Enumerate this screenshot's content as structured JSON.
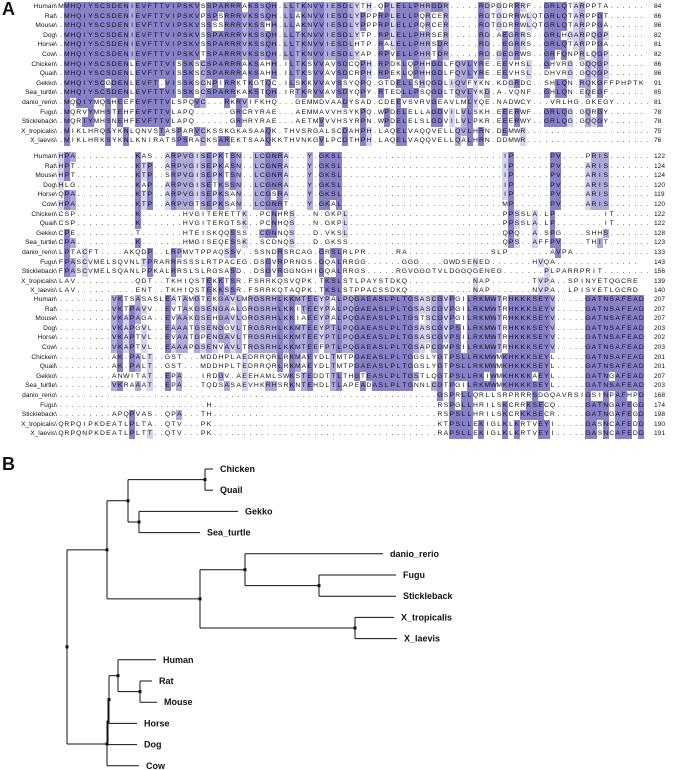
{
  "panels": {
    "a": "A",
    "b": "B"
  },
  "colors": {
    "high": "#8781c9",
    "mid": "#aeaadc",
    "low": "#d5d3ee",
    "line": "#111111"
  },
  "alignment": {
    "species": [
      "Human\\",
      "Rat\\",
      "Mouse\\",
      "Dog\\",
      "Horse\\",
      "Cow\\",
      "Chicken\\",
      "Quail\\",
      "Gekko\\",
      "Sea_turtle\\",
      "danio_rerio\\",
      "Fugu\\",
      "Stickleback\\",
      "X_tropicalis\\",
      "X_laevis\\"
    ],
    "blocks": [
      {
        "seqs": [
          "MMHQIYSCSDENIEVFTTVIPSKVSSPARRRAKSSQH.LLTKNVVIESDLYTH.QPLELLPHRGDR.....RDPGDRRRF..GRLQTARPPTA......",
          ".MHQIYSCSDENIEVFTTVIPSKVPSPSRRRVKSSQH.LLAKNVVIESDLYPPPRPLELLPQRCER.....RDTGDRRWLQTGRLQTARPPGT......",
          ".MHQIYSCSDENIEVFTTVIPSKVSSSSRRRVKSSHH.LLAKNVVIESDLYPPPRPLELLPQRCER.....RDTGDRRWLQTGRLQTARPPGA......",
          ".MHQIYSCSDENIEVFTTVIPSKVSSPARRRVKSSQH.LLTKNVVIESDLYTP.RPLELLPHRSER.....RD.AEGRRS..GRLHGARPQGP......",
          ".MHQIYSCSDENIEVFTTVIPSKVSSPARRRVKSSQH.LLTKNVVIESDLHTP.RALELLPHRSDR.....RD..EGRRS..GRLQTARPPGA......",
          ".MHQIYSCSDENIEVFTTVIPSKVTSPARRRVKSSQH.LLTKNVVIESDLYAP.RPVELLPHRTDR.....RD.GEGRWS..GRFQNPRLQGP......",
          ".MHQIYSCSDENLEVFTTVISSKSCSPARRRAKSAHH.ILTKSVVAVSDCQPH.RPDKLQPHHGDLFQVLYRE.EEVHSL..GHVRG.GQQGP......",
          ".MHQIYSCSDENLEVFTTVISSKSCSPARRRAKSAHH.ILTKSVVAVSDCRPH.RPEKLQPHHGDLFQVLYRE.EEVHSL..DHVRG.GQQGP......",
          ".MHQIYSCGDENLEVFT.VISSKSCNPIRRKTKGTQC.ILSKKVVAVSSYQPQ.GTDELLSHQGDLIQVFYKN.KDGRDC..SHLQN.RQKGFFPHPTK",
          ".MHQIYSCSDENLEVFTTVISSKSCSPARRKAKSTQH.IRTKRVVAVSDYQPY.RTEDLLPSQGDLTQVLYKD.A.VQNF..GHLQN.EQEGF......",
          ".MQQIYMQSHEEFEVFTTVLSPQVC...RKRVIFKHQ...GEMMDVAADYSAD.CDEEVSVRVGEAVLMLYQE.NADWCY...VRLHG.GKEGY......",
          ".MQRVYMHSTEHFEVFTTVLAPQ......GRCRYRAE...AEMMAVVHSYKPQ.WPDELELLAGDVILVLSKH.EEERWF..GRLQG.GQRGY......",
          ".MQRIYMHSNEHFEVFTTVLAPQ......GRHRYRAE...AETMVVVHSYRPN.WPDELELSLGDVILVLPKR.EEERWY..GRLQG.GQQGY......",
          ".MIKLHRQSYKNLQNVSTASPARVCKSSKGKASAAQK.THVSRGALSCDAHPH.LAQELVAQQVELLQVLHRN.DEMWR.....................",
          ".MIKLHRKSYKNLKNIRATSPSRACKSAREKTSAAQKKTHVNKGVLPCDTHPH.LAQELVAQQVELLQALHRN.DDMWR....................."
        ],
        "ends": [
          "84",
          "86",
          "86",
          "82",
          "81",
          "82",
          "86",
          "86",
          "91",
          "85",
          "81",
          "78",
          "78",
          "75",
          "76"
        ]
      },
      {
        "seqs": [
          "HPA..........KAS..ARPVGISEPKTSN..LCGNRA...Y.GKSL...........................IP......PV....PRIS.......",
          "HPT..........KTP..ARPVGISEPKASN..LCGNRA...Y.GKSL...........................IP......PV....ARIS.......",
          "HPT..........KTP..SRPVGISEPKTSN..LCGNRA...Y.GKSL...........................IP......PV....ARIS.......",
          "HLG..........KAP..ARPVGISETKSSN..LCGNRA...Y.GKSL...........................IP......PV....ARIS.......",
          "QPA..........KTP..ARPVGISEPKSAN..LCGSRA...Y.GKSL...........................IP......PV....ARIS.......",
          "HPA..........KTP..ARPVGTSEPKSAN..LCGNRT...Y.GKAL...........................MP......PV....ARIS.......",
          "CSP..........K.......HVGITERETTK..PCNHRS...N.GKPL..........................PPSSLA.LP........IT.......",
          "CSP..........K.......HVGITERGTSK..PCNHQS...N.GKPL..........................PPSSLA.LP........IT.......",
          "CPE..........T.......HTEISKQQSSS..CGNNQS...D.VKSL..........................QPQ..A.SPG....SHHS.......",
          "CPA..........K.......HMGISEQESSK..SCDNQS...D.GKSS..........................QPS..AFFPV....THIT.......",
          "LPTACFT....AKQDP..LRPMVTPPAQSSV..SSNDRSRCAG.GRSLRLPR.....RA..............SLP.......AVPA..............",
          "FPASCVMELSQVNLTPRARRRSSSLRTPACEG.DSGVRPRNGS.GQALRRGG......GGG....GWDSENED.......HVQA..............",
          "FPASCVMELSQANLPPKALRRSLSLRGSASD..DSGVRGGNGHIGQALRRGS.....RGVGGGTVLDGGQGENEG.......PLPARRPRIT........",
          "LAV..........QDT..TKHIQSTEKKTSR.FSRRKQSVQPK.TKSLSTLPAYSTDKQ...........NAP.......TVPA..SPINYETQGCRE",
          "LAV..........ENT..TKHIQSTEKKSSR.FSRRKQTAQPK.TKSLSTPPACSSDKQ...........NAP.......NVPA..LPISYETLGCRD"
        ],
        "ends": [
          "122",
          "124",
          "124",
          "120",
          "119",
          "120",
          "122",
          "122",
          "128",
          "123",
          "133",
          "143",
          "156",
          "139",
          "140"
        ]
      },
      {
        "seqs": [
          ".........VKTSASASLEATAMGTEKGAVLMRGSRHLKKMTEEYPALPQGAEASLPLTGSASCGVPGILRKMWTRHKKKSEYV.....GATNSAFEAD",
          ".........VKTPAVV..EVTAKGSENGAALGRGSRHLKKITEEYPALPQGAEASLPLTGSASCGVPGILRKMWTRHKKKSEYV.....GATNSAFEAD",
          ".........VKAPAGA..EVAAKGSEHGAVLGRGSRHLKKIAEEYPALPQGAEASLPLTGSTSCGVPGILRKMWTRHKKKSEYV.....GATNSAFEAD",
          ".........VKAPGVL..EAAATGSENGGVLTRGSRHLKKMTEEYPTLPQGAEASLPLTGSASCGVPSILRKMWTRHKKKSEYV.....GATNSAFEAD",
          ".........VKAPTVL..EVAATGPENGAVLTRGSRHLKKMTEEYPTLPQGAEASLPLTGSASCGVPSILRKMWTRHKKKSEYV.....GATNSAFEAD",
          ".........VKAPTVL..EAAAPGSENVAVLTRGSRHLKKMTEEFPTLPQGAEASLPLTGSAPCGMPSILRKMWTRHKKKSEYV.....GATNSAFEAD",
          ".........AK.PALT..GST...MDDHPLAEDRRQRLRKMAEYDLTMTPGAEASLPLTGGSLYGTPSLLRKMWMKHKKKSEYL.....GATNSAFEAD",
          ".........AK.PALT..GST...MDDHPLTEDRRQRLRKMAEYDLTMTPGAEASLPLTGGSLYGTPSLLRKMWMKHKKKSEYL.....GATNSAFEAD",
          ".........ANWITAT..EPA...IRDGV.AEEHAMLSWKSTEDDTTLTHGTEASLPLTGSTLQGTPSLLRKIWMKHKKKAEYL.....GATNGAFEAD",
          ".........VKRAAAT..EPA...TQDSASAEVHKRHSRKNTEHDLTLAPEADASLPLTGNNLCGTPGILRKMWMKHKKKSEYL.....GATNSAFEAD",
          "................................................................GSPRLLQRLLSRPRRRSDGQAVRSIGSINPAFHPD",
          ".........................H......................................RSPGLLHRILSKCRRKSECQ.....GATNGAFEGD",
          ".........APQPVAS..QPA...TH......................................RSPSLLHRILSKCRKKSECR.....GATNGAFEGD",
          "QRPQIPKDEATLPLTA..QTV...PK......................................KTPSLLEKIGLKLKRTVEYI.....GASNCAFEDD",
          "QRPQNPKDEATLPLTT..QTV...PK......................................RAPSLLEKIGLKLKRTVEYI.....GASNCAFEDD"
        ],
        "ends": [
          "207",
          "207",
          "207",
          "203",
          "202",
          "203",
          "201",
          "201",
          "207",
          "203",
          "168",
          "174",
          "198",
          "190",
          "191"
        ]
      }
    ]
  },
  "tree": {
    "leaves": [
      "Chicken",
      "Quail",
      "Gekko",
      "Sea_turtle",
      "danio_rerio",
      "Fugu",
      "Stickleback",
      "X_tropicalis",
      "X_laevis",
      "Human",
      "Rat",
      "Mouse",
      "Horse",
      "Dog",
      "Cow"
    ]
  }
}
